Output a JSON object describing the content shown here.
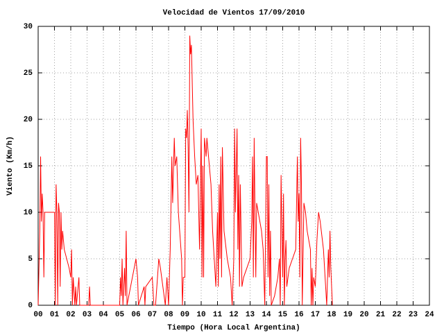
{
  "chart_data": {
    "type": "line",
    "title": "Velocidad de Vientos 17/09/2010",
    "xlabel": "Tiempo (Hora Local Argentina)",
    "ylabel": "Viento (Km/h)",
    "xlim": [
      0,
      24
    ],
    "ylim": [
      0,
      30
    ],
    "xticks": [
      {
        "value": 0,
        "label": "00"
      },
      {
        "value": 1,
        "label": "01"
      },
      {
        "value": 2,
        "label": "02"
      },
      {
        "value": 3,
        "label": "03"
      },
      {
        "value": 4,
        "label": "04"
      },
      {
        "value": 5,
        "label": "05"
      },
      {
        "value": 6,
        "label": "06"
      },
      {
        "value": 7,
        "label": "07"
      },
      {
        "value": 8,
        "label": "08"
      },
      {
        "value": 9,
        "label": "09"
      },
      10,
      11,
      12,
      13,
      14,
      15,
      16,
      17,
      18,
      19,
      20,
      21,
      22,
      23,
      24
    ],
    "yticks": [
      0,
      5,
      10,
      15,
      20,
      25,
      30
    ],
    "grid": true,
    "x": [
      0.0,
      0.1,
      0.15,
      0.2,
      0.25,
      0.3,
      0.35,
      0.4,
      0.5,
      1.0,
      1.05,
      1.1,
      1.15,
      1.2,
      1.25,
      1.3,
      1.35,
      1.4,
      1.45,
      1.5,
      1.6,
      1.9,
      2.0,
      2.05,
      2.1,
      2.15,
      2.25,
      2.3,
      2.35,
      2.5,
      2.55,
      3.0,
      3.1,
      3.15,
      3.2,
      5.0,
      5.05,
      5.1,
      5.15,
      5.2,
      5.3,
      5.35,
      5.4,
      5.45,
      6.0,
      6.05,
      6.1,
      6.15,
      6.5,
      6.55,
      6.6,
      7.0,
      7.1,
      7.2,
      7.4,
      7.5,
      7.8,
      7.9,
      8.0,
      8.1,
      8.2,
      8.25,
      8.35,
      8.4,
      8.5,
      8.6,
      8.8,
      8.85,
      8.9,
      9.0,
      9.05,
      9.1,
      9.15,
      9.2,
      9.25,
      9.3,
      9.35,
      9.4,
      9.5,
      9.6,
      9.7,
      9.8,
      9.9,
      10.0,
      10.05,
      10.1,
      10.15,
      10.2,
      10.3,
      10.35,
      10.4,
      10.5,
      10.6,
      10.7,
      10.8,
      10.9,
      11.0,
      11.05,
      11.1,
      11.15,
      11.2,
      11.25,
      11.3,
      11.4,
      11.6,
      11.8,
      11.9,
      12.0,
      12.05,
      12.1,
      12.2,
      12.25,
      12.3,
      12.35,
      12.4,
      12.5,
      12.6,
      12.8,
      13.0,
      13.1,
      13.15,
      13.2,
      13.25,
      13.3,
      13.35,
      13.4,
      13.5,
      13.7,
      13.8,
      13.9,
      14.0,
      14.05,
      14.1,
      14.15,
      14.2,
      14.25,
      14.3,
      14.5,
      14.7,
      14.8,
      14.85,
      14.9,
      15.0,
      15.05,
      15.1,
      15.15,
      15.2,
      15.25,
      15.4,
      15.6,
      15.8,
      15.85,
      15.9,
      15.95,
      16.0,
      16.05,
      16.1,
      16.15,
      16.2,
      16.3,
      16.4,
      16.5,
      16.7,
      16.75,
      16.8,
      16.85,
      16.9,
      17.0,
      17.1,
      17.2,
      17.3,
      17.5,
      17.6,
      17.7,
      17.8,
      17.85,
      17.9,
      17.95,
      18.05
    ],
    "series": [
      {
        "name": "Viento",
        "color": "#ff0000",
        "values": [
          0,
          8,
          16,
          9,
          12,
          10,
          3,
          10,
          10,
          10,
          0,
          13,
          10,
          0,
          11,
          10,
          2,
          10,
          6,
          8,
          6,
          4,
          3,
          6,
          0,
          3,
          0,
          2,
          0,
          3,
          0,
          0,
          0,
          2,
          0,
          0,
          3,
          1,
          5,
          0,
          4,
          1,
          8,
          0,
          5,
          4,
          3,
          0,
          2,
          0,
          2,
          3,
          0,
          0,
          5,
          4,
          0,
          3,
          0,
          6,
          16,
          11,
          18,
          15,
          16,
          10,
          5,
          0,
          3,
          3,
          19,
          18,
          21,
          17,
          10,
          29,
          27,
          28,
          20,
          16,
          13,
          14,
          6,
          19,
          3,
          15,
          3,
          18,
          16,
          18,
          17,
          15,
          13,
          8,
          5,
          2,
          10,
          2,
          13,
          5,
          16,
          3,
          17,
          8,
          5,
          3,
          0,
          5,
          19,
          10,
          19,
          6,
          14,
          2,
          13,
          2,
          3,
          4,
          5,
          9,
          16,
          3,
          18,
          10,
          3,
          11,
          10,
          8,
          6,
          0,
          16,
          16,
          3,
          13,
          1,
          8,
          0,
          1,
          3,
          5,
          0,
          14,
          3,
          12,
          0,
          5,
          7,
          2,
          4,
          5,
          6,
          11,
          16,
          9,
          12,
          3,
          18,
          13,
          0,
          11,
          10,
          8,
          6,
          0,
          4,
          0,
          3,
          2,
          7,
          10,
          9,
          6,
          3,
          0,
          6,
          3,
          8,
          4,
          0
        ]
      }
    ]
  }
}
